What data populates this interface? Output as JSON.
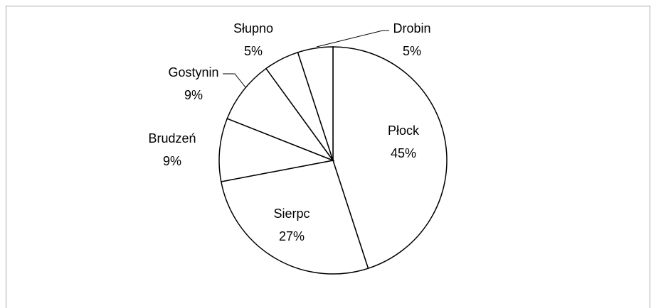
{
  "chart_data": {
    "type": "pie",
    "categories": [
      "Płock",
      "Sierpc",
      "Brudzeń",
      "Gostynin",
      "Słupno",
      "Drobin"
    ],
    "values": [
      45,
      27,
      9,
      9,
      5,
      5
    ],
    "value_labels": [
      "45%",
      "27%",
      "9%",
      "9%",
      "5%",
      "5%"
    ],
    "color": "#ffffff",
    "edge_color": "#000000"
  }
}
